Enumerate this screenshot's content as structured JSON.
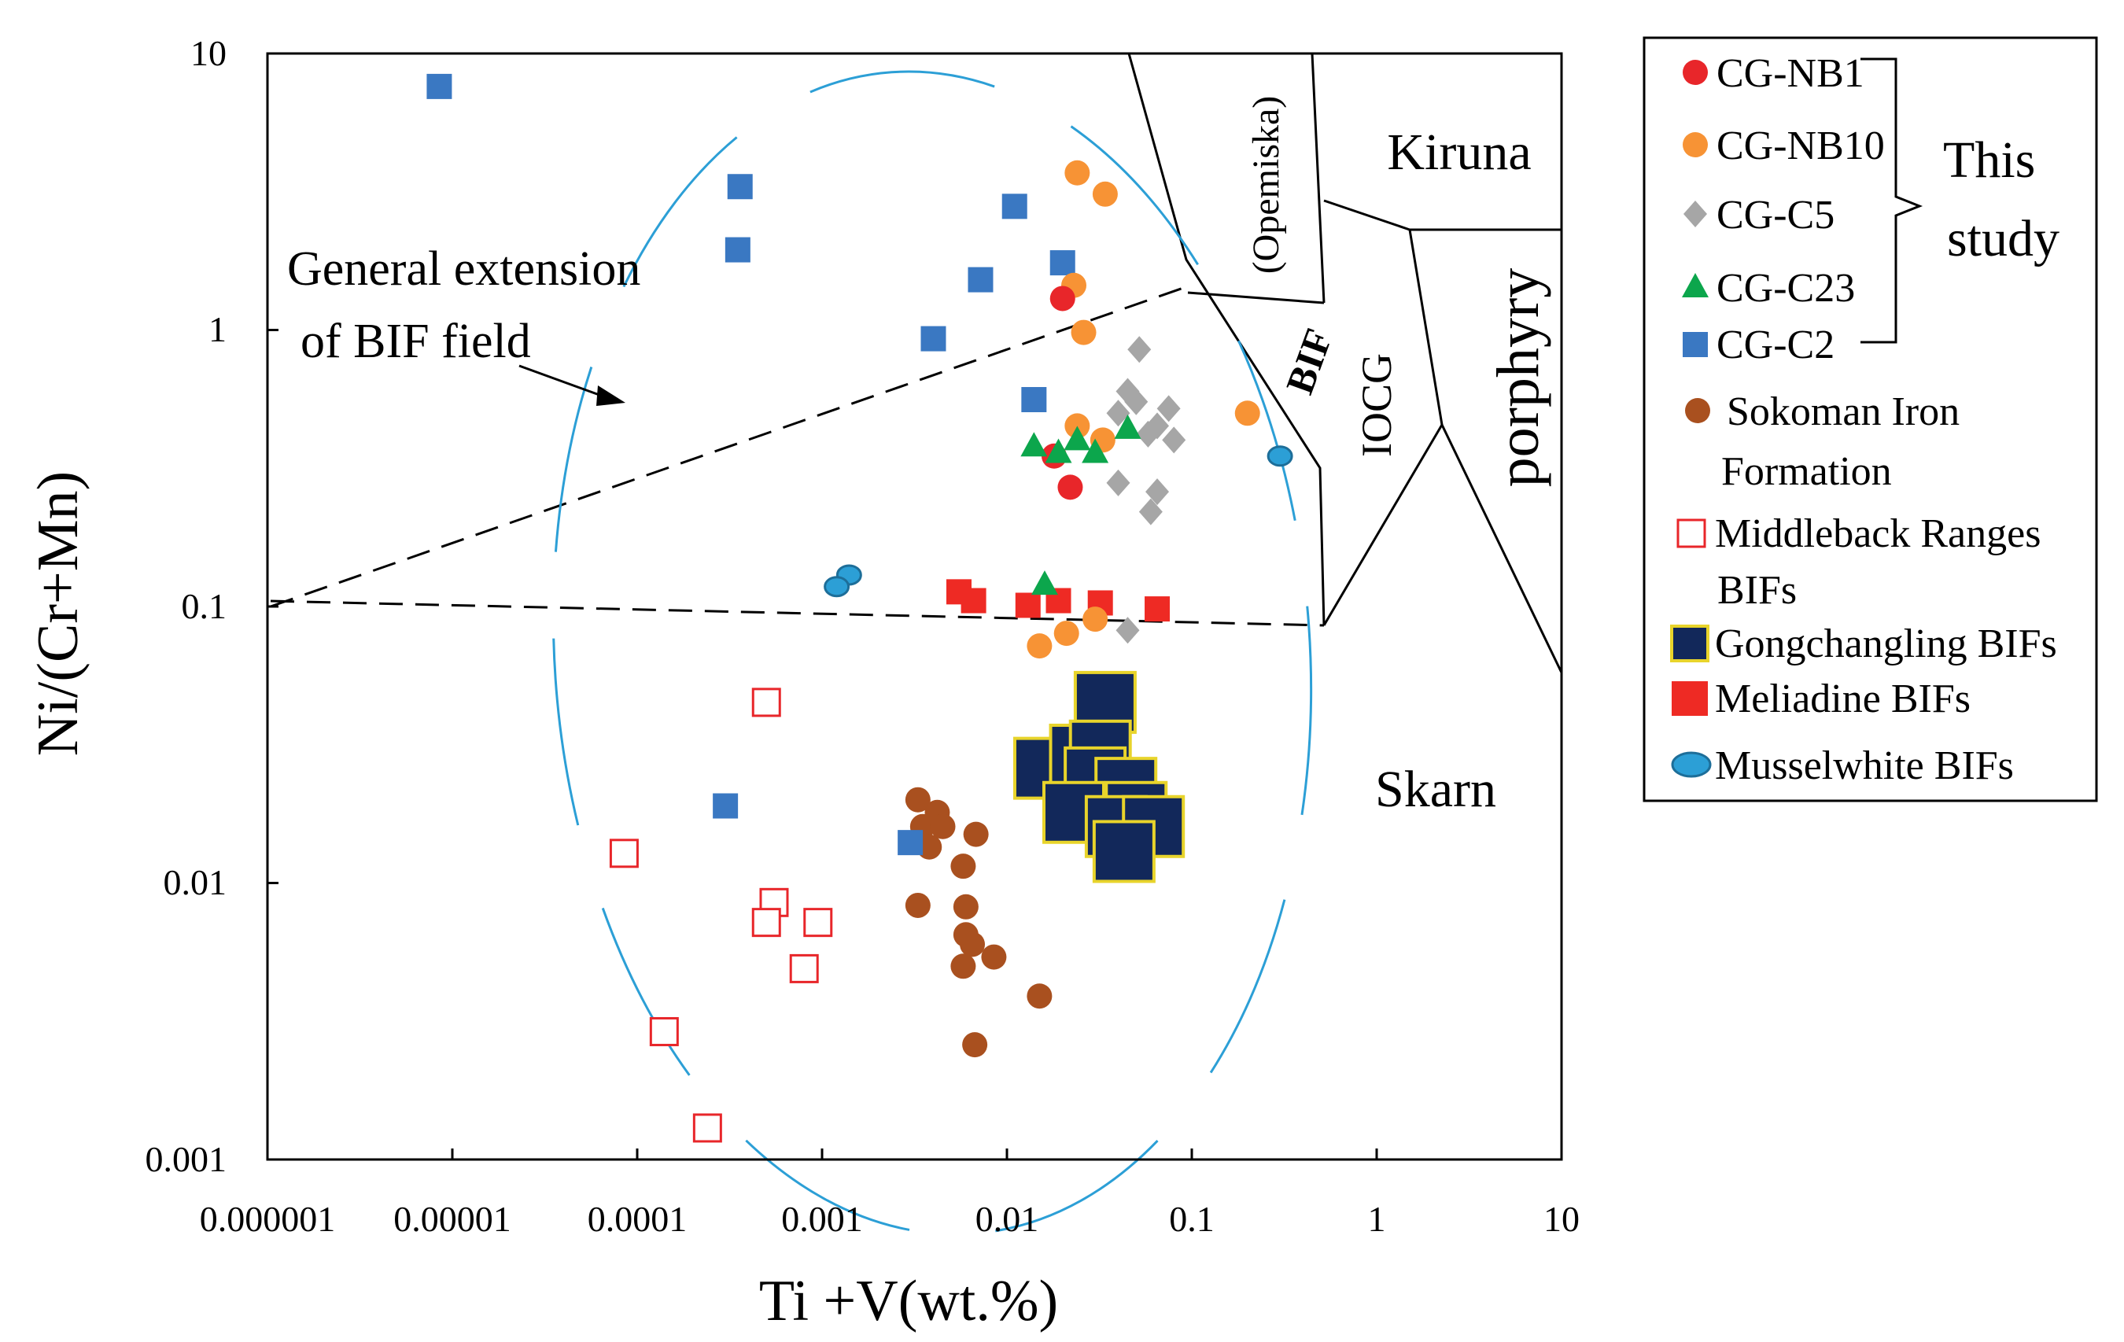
{
  "chart_data": {
    "type": "scatter",
    "x_scale": "log",
    "y_scale": "log",
    "xlabel": "Ti +V(wt.%)",
    "ylabel": "Ni/(Cr+Mn)",
    "xlim": [
      1e-06,
      10
    ],
    "ylim": [
      0.001,
      10
    ],
    "x_tick_labels": [
      "0.000001",
      "0.00001",
      "0.0001",
      "0.001",
      "0.01",
      "0.1",
      "1",
      "10"
    ],
    "y_tick_labels": [
      "0.001",
      "0.01",
      "0.1",
      "1",
      "10"
    ],
    "grid": false,
    "legend_position": "right, outside plot",
    "annotations": {
      "bif_extension": "General extension\nof BIF field",
      "this_study": "This\nstudy"
    },
    "regions": [
      {
        "label": "Kiruna",
        "x": 0.9,
        "y": 5.2
      },
      {
        "label": "(Opemiska)",
        "x": 0.23,
        "y": 2.5,
        "rotation": -90
      },
      {
        "label": "BIF",
        "x": 0.4,
        "y": 0.85,
        "rotation": -70,
        "bold": true
      },
      {
        "label": "IOCG",
        "x": 1.0,
        "y": 0.6,
        "rotation": -90
      },
      {
        "label": "porphyry",
        "x": 4.3,
        "y": 0.7,
        "rotation": -90
      },
      {
        "label": "Skarn",
        "x": 0.75,
        "y": 0.019
      }
    ],
    "series": [
      {
        "name": "CG-NB1",
        "marker": "circle",
        "color": "#e8262a",
        "points": [
          [
            0.02,
            1.3
          ],
          [
            0.018,
            0.35
          ],
          [
            0.022,
            0.27
          ]
        ]
      },
      {
        "name": "CG-NB10",
        "marker": "circle",
        "color": "#f79335",
        "points": [
          [
            0.024,
            3.7
          ],
          [
            0.034,
            3.1
          ],
          [
            0.023,
            1.45
          ],
          [
            0.026,
            0.98
          ],
          [
            0.024,
            0.45
          ],
          [
            0.033,
            0.4
          ],
          [
            0.2,
            0.5
          ],
          [
            0.015,
            0.072
          ],
          [
            0.021,
            0.08
          ],
          [
            0.03,
            0.09
          ]
        ]
      },
      {
        "name": "CG-C5",
        "marker": "diamond",
        "color": "#a6a6a6",
        "points": [
          [
            0.052,
            0.85
          ],
          [
            0.045,
            0.6
          ],
          [
            0.04,
            0.5
          ],
          [
            0.05,
            0.55
          ],
          [
            0.058,
            0.42
          ],
          [
            0.065,
            0.45
          ],
          [
            0.075,
            0.52
          ],
          [
            0.08,
            0.4
          ],
          [
            0.04,
            0.28
          ],
          [
            0.065,
            0.26
          ],
          [
            0.06,
            0.22
          ],
          [
            0.045,
            0.082
          ]
        ]
      },
      {
        "name": "CG-C23",
        "marker": "triangle",
        "color": "#0ca64c",
        "points": [
          [
            0.014,
            0.38
          ],
          [
            0.019,
            0.36
          ],
          [
            0.024,
            0.4
          ],
          [
            0.03,
            0.36
          ],
          [
            0.045,
            0.44
          ],
          [
            0.016,
            0.12
          ]
        ]
      },
      {
        "name": "CG-C2",
        "marker": "square",
        "color": "#3a78c2",
        "points": [
          [
            8.5e-06,
            7.6
          ],
          [
            0.00036,
            3.3
          ],
          [
            0.00035,
            1.95
          ],
          [
            0.011,
            2.8
          ],
          [
            0.02,
            1.75
          ],
          [
            0.0072,
            1.52
          ],
          [
            0.004,
            0.93
          ],
          [
            0.014,
            0.56
          ],
          [
            0.0003,
            0.019
          ],
          [
            0.003,
            0.014
          ]
        ]
      },
      {
        "name": "Sokoman Iron Formation",
        "marker": "circle",
        "color": "#a9501f",
        "points": [
          [
            0.0033,
            0.02
          ],
          [
            0.0035,
            0.016
          ],
          [
            0.0042,
            0.018
          ],
          [
            0.0038,
            0.0135
          ],
          [
            0.0045,
            0.016
          ],
          [
            0.0068,
            0.015
          ],
          [
            0.0058,
            0.0115
          ],
          [
            0.0033,
            0.0083
          ],
          [
            0.006,
            0.0082
          ],
          [
            0.006,
            0.0065
          ],
          [
            0.0065,
            0.006
          ],
          [
            0.0058,
            0.005
          ],
          [
            0.0085,
            0.0054
          ],
          [
            0.015,
            0.0039
          ],
          [
            0.0067,
            0.0026
          ]
        ]
      },
      {
        "name": "Middleback Ranges BIFs",
        "marker": "square-open",
        "color": "#e8262a",
        "points": [
          [
            0.0005,
            0.045
          ],
          [
            8.5e-05,
            0.0128
          ],
          [
            0.00055,
            0.0085
          ],
          [
            0.0005,
            0.0072
          ],
          [
            0.00095,
            0.0072
          ],
          [
            0.0008,
            0.0049
          ],
          [
            0.00014,
            0.0029
          ],
          [
            0.00024,
            0.0013
          ]
        ]
      },
      {
        "name": "Gongchangling BIFs",
        "marker": "square-large",
        "color": "#12285a",
        "points": [
          [
            0.034,
            0.045
          ],
          [
            0.016,
            0.026
          ],
          [
            0.025,
            0.029
          ],
          [
            0.032,
            0.03
          ],
          [
            0.03,
            0.024
          ],
          [
            0.044,
            0.022
          ],
          [
            0.05,
            0.018
          ],
          [
            0.023,
            0.018
          ],
          [
            0.039,
            0.016
          ],
          [
            0.062,
            0.016
          ],
          [
            0.043,
            0.013
          ]
        ]
      },
      {
        "name": "Meliadine BIFs",
        "marker": "square",
        "color": "#ee2a24",
        "points": [
          [
            0.0055,
            0.113
          ],
          [
            0.0066,
            0.105
          ],
          [
            0.013,
            0.101
          ],
          [
            0.019,
            0.105
          ],
          [
            0.032,
            0.103
          ],
          [
            0.065,
            0.098
          ]
        ]
      },
      {
        "name": "Musselwhite BIFs",
        "marker": "ellipse",
        "color": "#2c9fd6",
        "points": [
          [
            0.0014,
            0.13
          ],
          [
            0.0012,
            0.118
          ],
          [
            0.3,
            0.35
          ]
        ]
      }
    ]
  }
}
